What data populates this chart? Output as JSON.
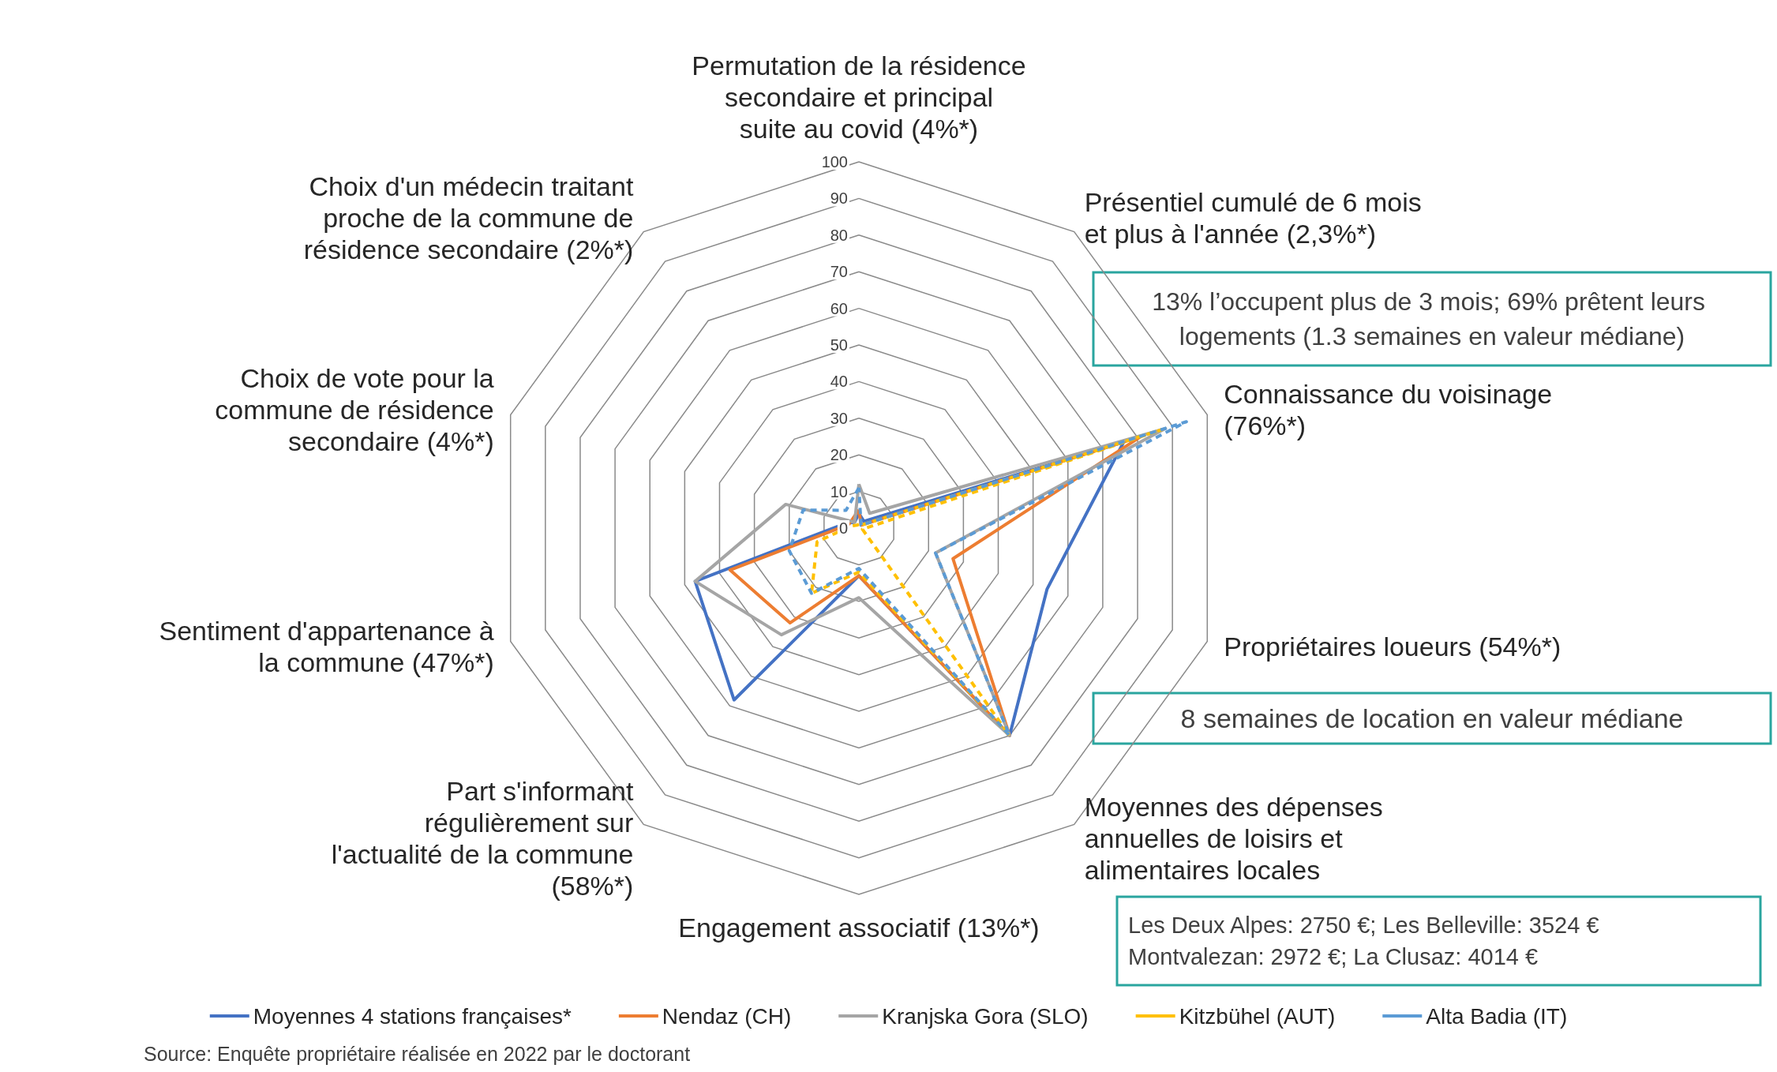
{
  "chart_data": {
    "type": "radar",
    "categories": [
      "Permutation de la résidence secondaire et principal suite au covid (4%*)",
      "Présentiel cumulé de 6 mois et plus à l'année (2,3%*)",
      "Connaissance du voisinage (76%*)",
      "Propriétaires loueurs (54%*)",
      "Moyennes des dépenses annuelles de loisirs et alimentaires locales",
      "Engagement associatif (13%*)",
      "Part s'informant régulièrement sur l'actualité de la commune (58%*)",
      "Sentiment d'appartenance à la commune (47%*)",
      "Choix de vote pour la commune de résidence secondaire (4%*)",
      "Choix d'un médecin traitant proche de la commune de résidence secondaire (2%*)"
    ],
    "series": [
      {
        "name": "Moyennes 4 stations françaises*",
        "color": "#4472c4",
        "line_style": "solid",
        "values": [
          4,
          2.3,
          76,
          54,
          70,
          13,
          58,
          47,
          4,
          2
        ]
      },
      {
        "name": "Nendaz (CH)",
        "color": "#ed7d31",
        "line_style": "solid",
        "values": [
          5,
          1,
          81,
          27,
          70,
          13,
          32,
          37,
          3,
          3
        ]
      },
      {
        "name": "Kranjska Gora (SLO)",
        "color": "#a5a5a5",
        "line_style": "solid",
        "values": [
          12,
          5,
          88,
          22,
          70,
          19,
          36,
          47,
          21,
          2
        ]
      },
      {
        "name": "Kitzbühel (AUT)",
        "color": "#ffc000",
        "line_style": "dashed",
        "values": [
          1,
          1,
          87,
          1,
          70,
          12,
          22,
          12,
          2,
          1
        ]
      },
      {
        "name": "Alta Badia (IT)",
        "color": "#5b9bd5",
        "line_style": "dashed",
        "values": [
          11,
          1,
          94,
          22,
          70,
          11,
          22,
          20,
          16,
          6
        ]
      }
    ],
    "ylim": [
      0,
      100
    ],
    "yticks": [
      0,
      10,
      20,
      30,
      40,
      50,
      60,
      70,
      80,
      90,
      100
    ],
    "marker": "none",
    "legend": "bottom",
    "grid": true,
    "annotations": [
      "13% l’occupent plus de 3 mois; 69% prêtent leurs logements (1.3 semaines en valeur médiane)",
      "8 semaines de location en valeur médiane",
      "Les Deux Alpes: 2750 €; Les Belleville: 3524 € Montvalezan: 2972 €; La Clusaz: 4014 €",
      "Source: Enquête propriétaire réalisée en 2022 par le doctorant"
    ]
  }
}
